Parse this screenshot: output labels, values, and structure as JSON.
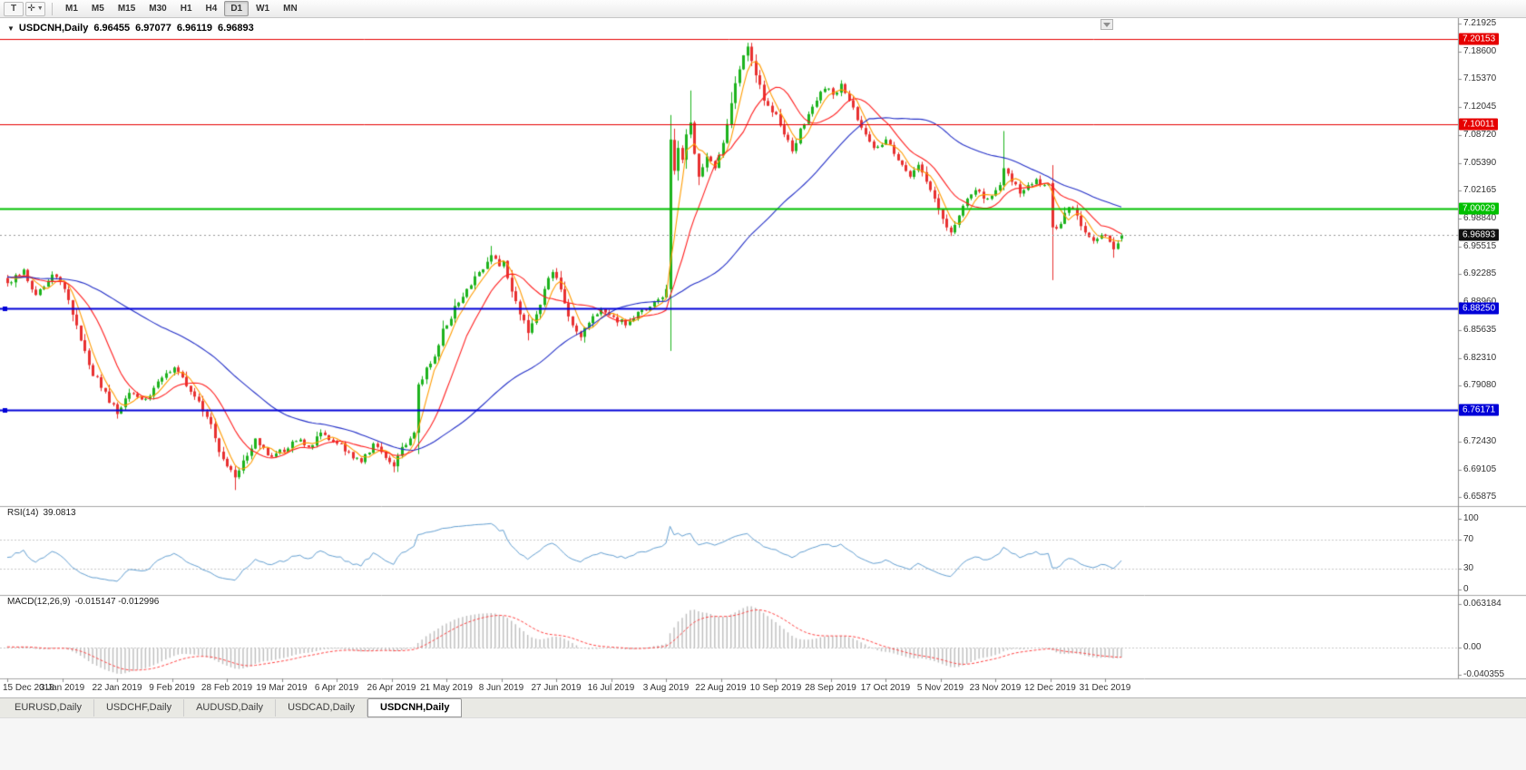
{
  "toolbar": {
    "tools": [
      {
        "name": "text-tool",
        "glyph": "T"
      },
      {
        "name": "crosshair-tool",
        "glyph": "✛"
      }
    ],
    "timeframes": [
      {
        "label": "M1",
        "active": false
      },
      {
        "label": "M5",
        "active": false
      },
      {
        "label": "M15",
        "active": false
      },
      {
        "label": "M30",
        "active": false
      },
      {
        "label": "H1",
        "active": false
      },
      {
        "label": "H4",
        "active": false
      },
      {
        "label": "D1",
        "active": true
      },
      {
        "label": "W1",
        "active": false
      },
      {
        "label": "MN",
        "active": false
      }
    ]
  },
  "chart": {
    "title": {
      "collapse_glyph": "▼",
      "symbol": "USDCNH,Daily",
      "open": "6.96455",
      "high": "6.97077",
      "low": "6.96119",
      "close": "6.96893"
    }
  },
  "rsi": {
    "label": "RSI(14)",
    "value": "39.0813"
  },
  "macd": {
    "label": "MACD(12,26,9)",
    "values": "-0.015147 -0.012996"
  },
  "tabs": [
    {
      "label": "EURUSD,Daily",
      "active": false
    },
    {
      "label": "USDCHF,Daily",
      "active": false
    },
    {
      "label": "AUDUSD,Daily",
      "active": false
    },
    {
      "label": "USDCAD,Daily",
      "active": false
    },
    {
      "label": "USDCNH,Daily",
      "active": true
    }
  ],
  "chart_data": {
    "type": "candlestick",
    "symbol": "USDCNH",
    "timeframe": "Daily",
    "bars": 275,
    "last_bar": {
      "open": 6.96455,
      "high": 6.97077,
      "low": 6.96119,
      "close": 6.96893
    },
    "current_price": 6.96893,
    "current_price_label": "6.96893",
    "y_axis": {
      "top": 7.21925,
      "bottom": 6.65875,
      "labels": [
        "7.21925",
        "7.18600",
        "7.15370",
        "7.12045",
        "7.08720",
        "7.05390",
        "7.02165",
        "6.98840",
        "6.95515",
        "6.92285",
        "6.88960",
        "6.85635",
        "6.82310",
        "6.79080",
        "6.75755",
        "6.72430",
        "6.69105",
        "6.65875"
      ]
    },
    "x_labels": [
      "15 Dec 2018",
      "3 Jan 2019",
      "22 Jan 2019",
      "9 Feb 2019",
      "28 Feb 2019",
      "19 Mar 2019",
      "6 Apr 2019",
      "26 Apr 2019",
      "21 May 2019",
      "8 Jun 2019",
      "27 Jun 2019",
      "16 Jul 2019",
      "3 Aug 2019",
      "22 Aug 2019",
      "10 Sep 2019",
      "28 Sep 2019",
      "17 Oct 2019",
      "5 Nov 2019",
      "23 Nov 2019",
      "12 Dec 2019",
      "31 Dec 2019"
    ],
    "horizontal_levels": [
      {
        "label": "7.20153",
        "price": 7.20153,
        "color": "#e60000",
        "width": 1,
        "handles": false
      },
      {
        "label": "7.10011",
        "price": 7.10011,
        "color": "#e60000",
        "width": 1,
        "handles": false
      },
      {
        "label": "7.00029",
        "price": 7.00029,
        "color": "#00c000",
        "width": 2,
        "handles": false
      },
      {
        "label": "6.88250",
        "price": 6.8825,
        "color": "#0000d8",
        "width": 2,
        "handles": true
      },
      {
        "label": "6.76171",
        "price": 6.76171,
        "color": "#0000d8",
        "width": 2,
        "handles": true
      }
    ],
    "moving_averages": [
      {
        "name": "ma-fast",
        "period": 5,
        "color": "#ff9c00"
      },
      {
        "name": "ma-medium",
        "period": 13,
        "color": "#ff1f1f"
      },
      {
        "name": "ma-slow",
        "period": 50,
        "color": "#2430c8"
      }
    ],
    "rsi": {
      "period": 14,
      "last": 39.0813,
      "scale": [
        {
          "text": "100",
          "value": 100
        },
        {
          "text": "70",
          "value": 70
        },
        {
          "text": "30",
          "value": 30
        },
        {
          "text": "0",
          "value": 0
        }
      ],
      "guide_levels": [
        70,
        30
      ]
    },
    "macd": {
      "fast": 12,
      "slow": 26,
      "signal": 9,
      "last": [
        -0.015147,
        -0.012996
      ],
      "scale": [
        {
          "text": "0.063184",
          "value": 0.063184
        },
        {
          "text": "0.00",
          "value": 0
        },
        {
          "text": "-0.040355",
          "value": -0.040355
        }
      ]
    },
    "colors": {
      "up": "#1db31d",
      "down": "#e83030",
      "rsi": "#64a0d2",
      "macd_bars": "#bdbdbd",
      "macd_signal": "#ff4545"
    },
    "close_anchors": [
      [
        0,
        6.912
      ],
      [
        4,
        6.928
      ],
      [
        7,
        6.898
      ],
      [
        11,
        6.922
      ],
      [
        14,
        6.905
      ],
      [
        17,
        6.862
      ],
      [
        20,
        6.815
      ],
      [
        23,
        6.788
      ],
      [
        27,
        6.757
      ],
      [
        30,
        6.782
      ],
      [
        34,
        6.775
      ],
      [
        38,
        6.8
      ],
      [
        41,
        6.812
      ],
      [
        44,
        6.79
      ],
      [
        47,
        6.772
      ],
      [
        50,
        6.745
      ],
      [
        52,
        6.712
      ],
      [
        54,
        6.695
      ],
      [
        56,
        6.682
      ],
      [
        58,
        6.702
      ],
      [
        61,
        6.728
      ],
      [
        64,
        6.708
      ],
      [
        68,
        6.712
      ],
      [
        71,
        6.725
      ],
      [
        74,
        6.718
      ],
      [
        77,
        6.735
      ],
      [
        81,
        6.722
      ],
      [
        84,
        6.712
      ],
      [
        87,
        6.7
      ],
      [
        90,
        6.722
      ],
      [
        93,
        6.705
      ],
      [
        95,
        6.695
      ],
      [
        97,
        6.718
      ],
      [
        99,
        6.728
      ],
      [
        100,
        6.735
      ],
      [
        101,
        6.792
      ],
      [
        103,
        6.812
      ],
      [
        105,
        6.825
      ],
      [
        107,
        6.858
      ],
      [
        108,
        6.862
      ],
      [
        110,
        6.885
      ],
      [
        113,
        6.905
      ],
      [
        116,
        6.925
      ],
      [
        119,
        6.945
      ],
      [
        121,
        6.932
      ],
      [
        122,
        6.938
      ],
      [
        124,
        6.902
      ],
      [
        126,
        6.875
      ],
      [
        128,
        6.853
      ],
      [
        130,
        6.875
      ],
      [
        132,
        6.905
      ],
      [
        134,
        6.925
      ],
      [
        135,
        6.918
      ],
      [
        137,
        6.888
      ],
      [
        139,
        6.862
      ],
      [
        141,
        6.848
      ],
      [
        143,
        6.865
      ],
      [
        146,
        6.882
      ],
      [
        149,
        6.872
      ],
      [
        152,
        6.862
      ],
      [
        155,
        6.878
      ],
      [
        158,
        6.884
      ],
      [
        161,
        6.895
      ],
      [
        162,
        6.905
      ],
      [
        163,
        7.082
      ],
      [
        164,
        7.045
      ],
      [
        165,
        7.072
      ],
      [
        166,
        7.058
      ],
      [
        167,
        7.088
      ],
      [
        168,
        7.102
      ],
      [
        169,
        7.065
      ],
      [
        170,
        7.038
      ],
      [
        172,
        7.062
      ],
      [
        174,
        7.048
      ],
      [
        176,
        7.078
      ],
      [
        178,
        7.125
      ],
      [
        180,
        7.165
      ],
      [
        182,
        7.192
      ],
      [
        183,
        7.175
      ],
      [
        184,
        7.158
      ],
      [
        186,
        7.128
      ],
      [
        189,
        7.112
      ],
      [
        191,
        7.088
      ],
      [
        193,
        7.068
      ],
      [
        195,
        7.095
      ],
      [
        197,
        7.112
      ],
      [
        199,
        7.128
      ],
      [
        201,
        7.142
      ],
      [
        203,
        7.135
      ],
      [
        205,
        7.148
      ],
      [
        207,
        7.128
      ],
      [
        209,
        7.105
      ],
      [
        211,
        7.088
      ],
      [
        213,
        7.072
      ],
      [
        216,
        7.082
      ],
      [
        218,
        7.065
      ],
      [
        220,
        7.052
      ],
      [
        222,
        7.038
      ],
      [
        224,
        7.052
      ],
      [
        226,
        7.032
      ],
      [
        228,
        7.012
      ],
      [
        230,
        6.988
      ],
      [
        232,
        6.972
      ],
      [
        234,
        6.992
      ],
      [
        236,
        7.012
      ],
      [
        238,
        7.022
      ],
      [
        240,
        7.012
      ],
      [
        243,
        7.022
      ],
      [
        244,
        7.028
      ],
      [
        245,
        7.048
      ],
      [
        247,
        7.032
      ],
      [
        249,
        7.018
      ],
      [
        251,
        7.028
      ],
      [
        253,
        7.035
      ],
      [
        255,
        7.028
      ],
      [
        256,
        7.03
      ],
      [
        257,
        6.978
      ],
      [
        259,
        6.982
      ],
      [
        261,
        7.002
      ],
      [
        263,
        6.992
      ],
      [
        265,
        6.972
      ],
      [
        267,
        6.962
      ],
      [
        270,
        6.968
      ],
      [
        272,
        6.952
      ],
      [
        274,
        6.965
      ]
    ],
    "wick_overrides": {
      "56": {
        "low": 6.667
      },
      "95": {
        "low": 6.688
      },
      "119": {
        "high": 6.956
      },
      "163": {
        "high": 7.111
      },
      "168": {
        "high": 7.14
      },
      "182": {
        "high": 7.1965
      },
      "245": {
        "high": 7.092
      },
      "257": {
        "low": 6.9155
      },
      "272": {
        "low": 6.942
      }
    }
  }
}
